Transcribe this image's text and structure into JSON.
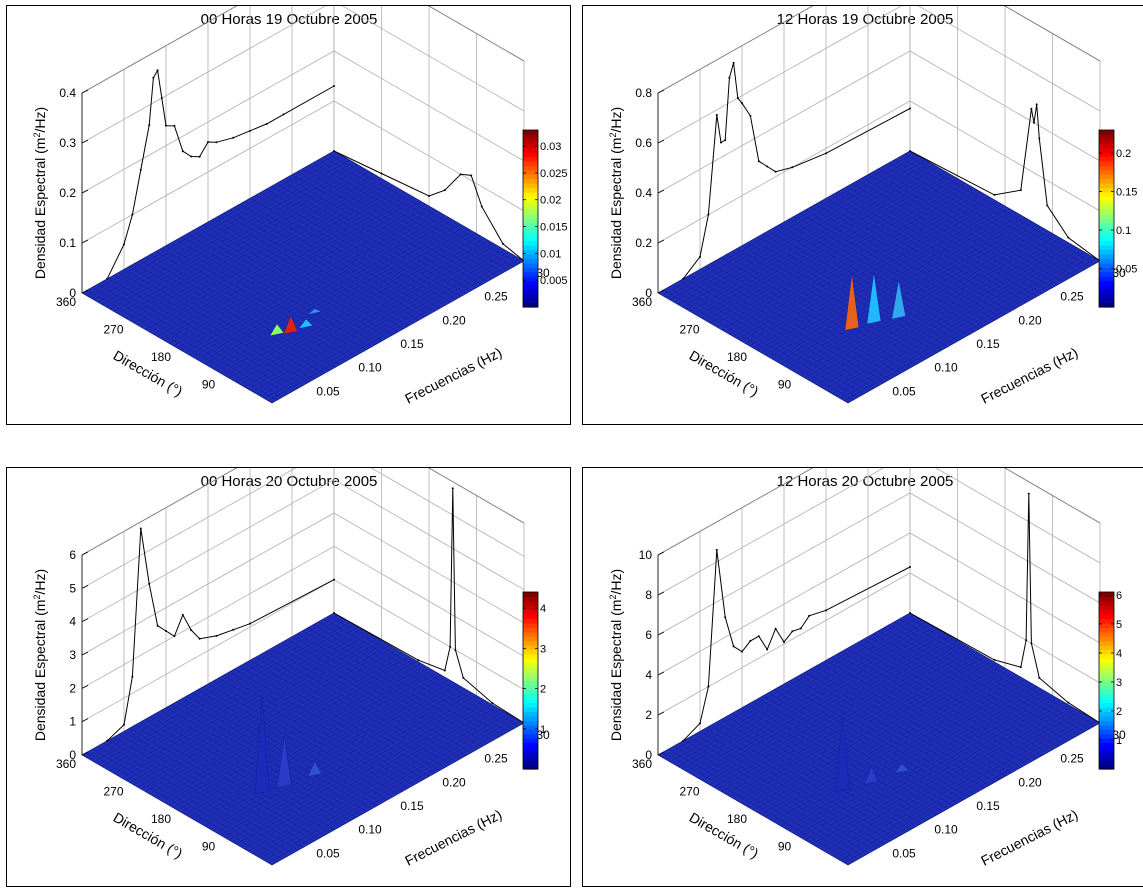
{
  "chart_data": [
    {
      "type": "surface3d",
      "title": "00 Horas 19 Octubre 2005",
      "zlabel_pre": "Densidad Espectral (m",
      "zlabel_sup": "2",
      "zlabel_post": "/Hz)",
      "xlabel": "Frecuencias (Hz)",
      "ylabel": "Dirección (°)",
      "x_ticks": [
        "0.05",
        "0.10",
        "0.15",
        "0.20",
        "0.25",
        "0.30"
      ],
      "y_ticks": [
        "90",
        "180",
        "270",
        "360"
      ],
      "z_ticks": [
        "0",
        "0.1",
        "0.2",
        "0.3",
        "0.4"
      ],
      "zlim": [
        0,
        0.4
      ],
      "colorbar_ticks": [
        "0.005",
        "0.01",
        "0.015",
        "0.02",
        "0.025",
        "0.03"
      ],
      "colorbar_values": [
        0.005,
        0.01,
        0.015,
        0.02,
        0.025,
        0.03
      ],
      "colorbar_max": 0.033,
      "freq_profile": [
        [
          0.03,
          0
        ],
        [
          0.05,
          0.05
        ],
        [
          0.06,
          0.1
        ],
        [
          0.07,
          0.18
        ],
        [
          0.08,
          0.26
        ],
        [
          0.085,
          0.35
        ],
        [
          0.09,
          0.36
        ],
        [
          0.095,
          0.3
        ],
        [
          0.1,
          0.24
        ],
        [
          0.11,
          0.23
        ],
        [
          0.12,
          0.17
        ],
        [
          0.13,
          0.15
        ],
        [
          0.14,
          0.14
        ],
        [
          0.15,
          0.16
        ],
        [
          0.16,
          0.15
        ],
        [
          0.18,
          0.14
        ],
        [
          0.2,
          0.135
        ],
        [
          0.22,
          0.13
        ],
        [
          0.24,
          0.13
        ],
        [
          0.3,
          0.13
        ]
      ],
      "dir_profile": [
        [
          360,
          0
        ],
        [
          270,
          0.01
        ],
        [
          180,
          0.02
        ],
        [
          150,
          0.05
        ],
        [
          120,
          0.1
        ],
        [
          100,
          0.11
        ],
        [
          80,
          0.06
        ],
        [
          40,
          0.01
        ],
        [
          0,
          0
        ]
      ],
      "peaks": [
        {
          "freq": 0.085,
          "dir": 100,
          "value": 0.033,
          "color": "#e02010"
        },
        {
          "freq": 0.075,
          "dir": 110,
          "value": 0.02,
          "color": "#8fff70"
        },
        {
          "freq": 0.1,
          "dir": 95,
          "value": 0.015,
          "color": "#20c0ff"
        },
        {
          "freq": 0.12,
          "dir": 110,
          "value": 0.008,
          "color": "#3a8cff"
        }
      ]
    },
    {
      "type": "surface3d",
      "title": "12 Horas 19 Octubre 2005",
      "zlabel_pre": "Densidad Espectral (m",
      "zlabel_sup": "2",
      "zlabel_post": "/Hz)",
      "xlabel": "Frecuencias (Hz)",
      "ylabel": "Dirección (°)",
      "x_ticks": [
        "0.05",
        "0.10",
        "0.15",
        "0.20",
        "0.25",
        "0.30"
      ],
      "y_ticks": [
        "90",
        "180",
        "270",
        "360"
      ],
      "z_ticks": [
        "0",
        "0.2",
        "0.4",
        "0.6",
        "0.8"
      ],
      "zlim": [
        0,
        0.8
      ],
      "colorbar_ticks": [
        "0.05",
        "0.1",
        "0.15",
        "0.2"
      ],
      "colorbar_values": [
        0.05,
        0.1,
        0.15,
        0.2
      ],
      "colorbar_max": 0.23,
      "freq_profile": [
        [
          0.03,
          0
        ],
        [
          0.05,
          0.05
        ],
        [
          0.06,
          0.2
        ],
        [
          0.07,
          0.58
        ],
        [
          0.075,
          0.46
        ],
        [
          0.08,
          0.46
        ],
        [
          0.085,
          0.7
        ],
        [
          0.09,
          0.75
        ],
        [
          0.095,
          0.6
        ],
        [
          0.1,
          0.57
        ],
        [
          0.11,
          0.5
        ],
        [
          0.12,
          0.3
        ],
        [
          0.13,
          0.26
        ],
        [
          0.14,
          0.22
        ],
        [
          0.16,
          0.2
        ],
        [
          0.2,
          0.18
        ],
        [
          0.3,
          0.17
        ]
      ],
      "dir_profile": [
        [
          360,
          0
        ],
        [
          200,
          0.02
        ],
        [
          150,
          0.1
        ],
        [
          130,
          0.45
        ],
        [
          125,
          0.4
        ],
        [
          120,
          0.48
        ],
        [
          115,
          0.35
        ],
        [
          100,
          0.1
        ],
        [
          60,
          0.02
        ],
        [
          0,
          0
        ]
      ],
      "peaks": [
        {
          "freq": 0.08,
          "dir": 120,
          "value": 0.22,
          "color": "#e8601a"
        },
        {
          "freq": 0.1,
          "dir": 110,
          "value": 0.2,
          "color": "#20b8ff"
        },
        {
          "freq": 0.12,
          "dir": 95,
          "value": 0.15,
          "color": "#30a8f0"
        }
      ]
    },
    {
      "type": "surface3d",
      "title": "00 Horas 20 Octubre 2005",
      "zlabel_pre": "Densidad Espectral (m",
      "zlabel_sup": "2",
      "zlabel_post": "/Hz)",
      "xlabel": "Frecuencias (Hz)",
      "ylabel": "Dirección (°)",
      "x_ticks": [
        "0.05",
        "0.10",
        "0.15",
        "0.20",
        "0.25",
        "0.30"
      ],
      "y_ticks": [
        "90",
        "180",
        "270",
        "360"
      ],
      "z_ticks": [
        "0",
        "1",
        "2",
        "3",
        "4",
        "5",
        "6"
      ],
      "zlim": [
        0,
        6
      ],
      "colorbar_ticks": [
        "1",
        "2",
        "3",
        "4"
      ],
      "colorbar_values": [
        1,
        2,
        3,
        4
      ],
      "colorbar_max": 4.4,
      "freq_profile": [
        [
          0.03,
          0
        ],
        [
          0.05,
          0.2
        ],
        [
          0.06,
          1.5
        ],
        [
          0.07,
          5.8
        ],
        [
          0.08,
          4.0
        ],
        [
          0.09,
          2.6
        ],
        [
          0.1,
          2.3
        ],
        [
          0.11,
          2.0
        ],
        [
          0.12,
          2.5
        ],
        [
          0.13,
          1.9
        ],
        [
          0.14,
          1.5
        ],
        [
          0.16,
          1.3
        ],
        [
          0.18,
          1.2
        ],
        [
          0.2,
          1.1
        ],
        [
          0.3,
          1.0
        ]
      ],
      "dir_profile": [
        [
          360,
          0
        ],
        [
          200,
          0.05
        ],
        [
          150,
          0.2
        ],
        [
          140,
          1.0
        ],
        [
          135,
          5.8
        ],
        [
          130,
          1.0
        ],
        [
          115,
          0.3
        ],
        [
          60,
          0.05
        ],
        [
          0,
          0
        ]
      ],
      "peaks": [
        {
          "freq": 0.07,
          "dir": 130,
          "value": 2.9,
          "color": "#1e2ab8"
        },
        {
          "freq": 0.09,
          "dir": 120,
          "value": 1.5,
          "color": "#2b3cc8"
        },
        {
          "freq": 0.12,
          "dir": 110,
          "value": 0.4,
          "color": "#3050d0"
        }
      ]
    },
    {
      "type": "surface3d",
      "title": "12 Horas 20 Octubre 2005",
      "zlabel_pre": "Densidad Espectral (m",
      "zlabel_sup": "2",
      "zlabel_post": "/Hz)",
      "xlabel": "Frecuencias (Hz)",
      "ylabel": "Dirección (°)",
      "x_ticks": [
        "0.05",
        "0.10",
        "0.15",
        "0.20",
        "0.25",
        "0.30"
      ],
      "y_ticks": [
        "90",
        "180",
        "270",
        "360"
      ],
      "z_ticks": [
        "0",
        "2",
        "4",
        "6",
        "8",
        "10"
      ],
      "zlim": [
        0,
        10
      ],
      "colorbar_ticks": [
        "1",
        "2",
        "3",
        "4",
        "5",
        "6"
      ],
      "colorbar_values": [
        1,
        2,
        3,
        4,
        5,
        6
      ],
      "colorbar_max": 6.1,
      "freq_profile": [
        [
          0.03,
          0
        ],
        [
          0.05,
          0.4
        ],
        [
          0.06,
          2.0
        ],
        [
          0.07,
          8.6
        ],
        [
          0.08,
          5.0
        ],
        [
          0.09,
          3.3
        ],
        [
          0.1,
          2.8
        ],
        [
          0.11,
          3.1
        ],
        [
          0.12,
          3.1
        ],
        [
          0.13,
          2.2
        ],
        [
          0.14,
          3.0
        ],
        [
          0.15,
          2.1
        ],
        [
          0.16,
          2.4
        ],
        [
          0.17,
          2.3
        ],
        [
          0.18,
          2.7
        ],
        [
          0.2,
          2.5
        ],
        [
          0.3,
          2.3
        ]
      ],
      "dir_profile": [
        [
          360,
          0
        ],
        [
          200,
          0.1
        ],
        [
          150,
          0.5
        ],
        [
          140,
          2.0
        ],
        [
          135,
          9.4
        ],
        [
          130,
          2.0
        ],
        [
          115,
          0.5
        ],
        [
          60,
          0.1
        ],
        [
          0,
          0
        ]
      ],
      "peaks": [
        {
          "freq": 0.075,
          "dir": 130,
          "value": 3.7,
          "color": "#1e2ab8"
        },
        {
          "freq": 0.1,
          "dir": 115,
          "value": 0.8,
          "color": "#2b3cc8"
        },
        {
          "freq": 0.13,
          "dir": 105,
          "value": 0.4,
          "color": "#3050d0"
        }
      ]
    }
  ]
}
